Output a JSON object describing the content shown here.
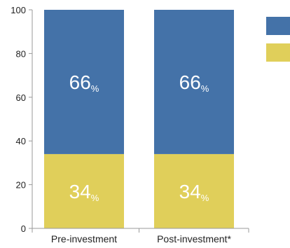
{
  "chart_data": {
    "type": "bar",
    "stacked": true,
    "categories": [
      "Pre-investment",
      "Post-investment*"
    ],
    "series": [
      {
        "values": [
          34,
          34
        ],
        "color": "#e0cf5a"
      },
      {
        "values": [
          66,
          66
        ],
        "color": "#4472a8"
      }
    ],
    "data_label_unit": "%",
    "ylim": [
      0,
      100
    ],
    "yticks": [
      0,
      20,
      40,
      60,
      80,
      100
    ],
    "grid": false,
    "legend": {
      "placement": "top-right",
      "entries": [
        {
          "color": "#4472a8"
        },
        {
          "color": "#e0cf5a"
        }
      ]
    }
  }
}
